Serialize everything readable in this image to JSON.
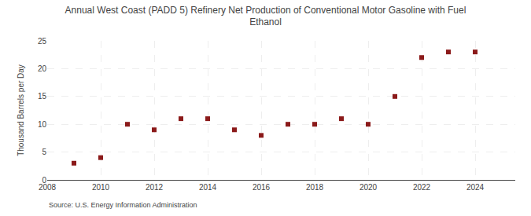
{
  "chart_data": {
    "type": "scatter",
    "title": "Annual West Coast (PADD 5) Refinery Net Production of Conventional Motor Gasoline with Fuel\nEthanol",
    "ylabel": "Thousand Barrels per Day",
    "source": "Source: U.S. Energy Information Administration",
    "x": [
      2009,
      2010,
      2011,
      2012,
      2013,
      2014,
      2015,
      2016,
      2017,
      2018,
      2019,
      2020,
      2021,
      2022,
      2023,
      2024
    ],
    "values": [
      3.0,
      4.0,
      10.0,
      9.0,
      11.0,
      11.0,
      9.0,
      8.0,
      10.0,
      10.0,
      11.0,
      10.0,
      15.0,
      22.0,
      23.0,
      23.0
    ],
    "color": "#8B1A1A",
    "marker": "square",
    "xlim": [
      2008,
      2025.5
    ],
    "xticks": [
      2008,
      2010,
      2012,
      2014,
      2016,
      2018,
      2020,
      2022,
      2024
    ],
    "ylim": [
      0,
      25
    ],
    "yticks": [
      0,
      5,
      10,
      15,
      20,
      25
    ],
    "grid": true
  }
}
